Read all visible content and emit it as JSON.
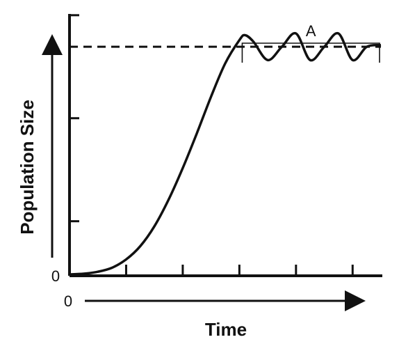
{
  "chart_data": {
    "type": "line",
    "title": "",
    "xlabel": "Time",
    "ylabel": "Population Size",
    "x_origin_label": "0",
    "y_origin_label": "0",
    "xlim": [
      0,
      11
    ],
    "ylim": [
      0,
      7
    ],
    "x_ticks": [
      2,
      4,
      6,
      8,
      10
    ],
    "y_ticks": [
      1.6,
      4.7,
      7.8
    ],
    "grid": false,
    "legend": "none",
    "line_color": "#111111",
    "carrying_capacity": {
      "value": 6.85,
      "style": "dashed"
    },
    "series": [
      {
        "values_x": [
          0,
          0.5,
          1,
          1.5,
          2,
          2.5,
          3,
          3.5,
          4,
          4.5,
          5,
          5.5,
          6,
          6.2,
          6.5,
          7,
          7.5,
          8,
          8.5,
          9,
          9.5,
          10,
          10.5,
          11
        ],
        "values_y": [
          0,
          0.02,
          0.08,
          0.2,
          0.45,
          0.85,
          1.45,
          2.25,
          3.2,
          4.25,
          5.35,
          6.35,
          7.05,
          7.2,
          7.0,
          6.45,
          6.85,
          7.25,
          6.45,
          6.85,
          7.25,
          6.45,
          6.85,
          6.9
        ]
      }
    ],
    "annotations": [
      {
        "label": "A",
        "x_start": 6.1,
        "x_end": 11
      }
    ]
  }
}
